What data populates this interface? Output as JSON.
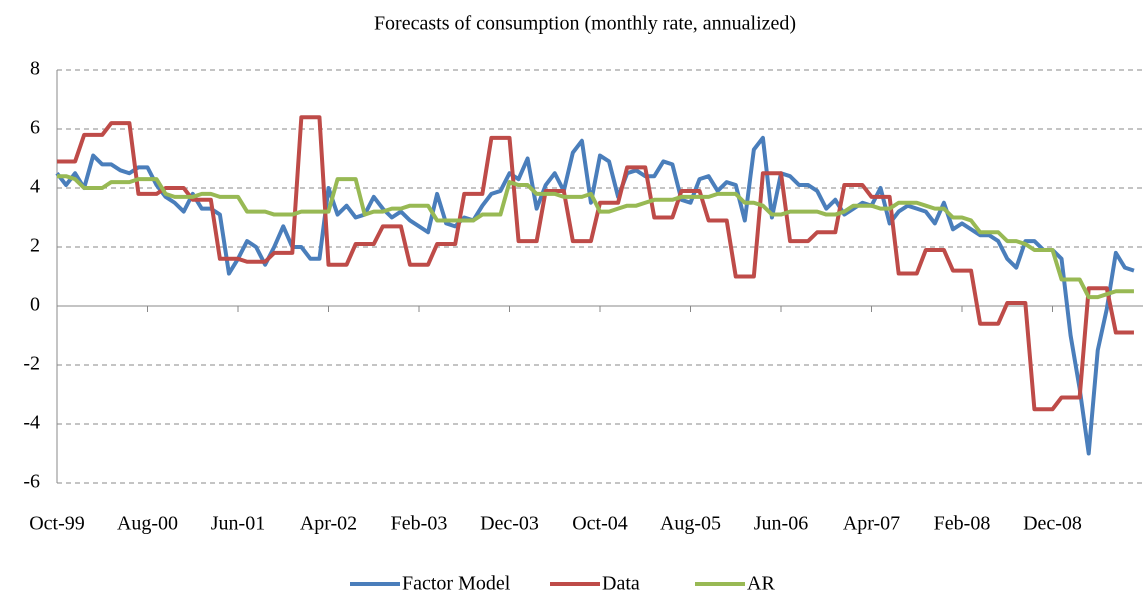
{
  "chart_data": {
    "type": "line",
    "title": "Forecasts of consumption (monthly rate, annualized)",
    "categories": [
      "Oct-99",
      null,
      null,
      null,
      null,
      null,
      null,
      null,
      null,
      null,
      "Aug-00",
      null,
      null,
      null,
      null,
      null,
      null,
      null,
      null,
      null,
      "Jun-01",
      null,
      null,
      null,
      null,
      null,
      null,
      null,
      null,
      null,
      "Apr-02",
      null,
      null,
      null,
      null,
      null,
      null,
      null,
      null,
      null,
      "Feb-03",
      null,
      null,
      null,
      null,
      null,
      null,
      null,
      null,
      null,
      "Dec-03",
      null,
      null,
      null,
      null,
      null,
      null,
      null,
      null,
      null,
      "Oct-04",
      null,
      null,
      null,
      null,
      null,
      null,
      null,
      null,
      null,
      "Aug-05",
      null,
      null,
      null,
      null,
      null,
      null,
      null,
      null,
      null,
      "Jun-06",
      null,
      null,
      null,
      null,
      null,
      null,
      null,
      null,
      null,
      "Apr-07",
      null,
      null,
      null,
      null,
      null,
      null,
      null,
      null,
      null,
      "Feb-08",
      null,
      null,
      null,
      null,
      null,
      null,
      null,
      null,
      null,
      "Dec-08",
      null,
      null,
      null,
      null,
      null,
      null,
      null,
      null,
      null
    ],
    "series": [
      {
        "name": "Factor Model",
        "color": "#4a7ebb",
        "values": [
          4.5,
          4.1,
          4.5,
          4.0,
          5.1,
          4.8,
          4.8,
          4.6,
          4.5,
          4.7,
          4.7,
          4.1,
          3.7,
          3.5,
          3.2,
          3.8,
          3.3,
          3.3,
          3.1,
          1.1,
          1.6,
          2.2,
          2.0,
          1.4,
          2.0,
          2.7,
          2.0,
          2.0,
          1.6,
          1.6,
          4.0,
          3.1,
          3.4,
          3.0,
          3.1,
          3.7,
          3.3,
          3.0,
          3.2,
          2.9,
          2.7,
          2.5,
          3.8,
          2.8,
          2.7,
          3.0,
          2.9,
          3.4,
          3.8,
          3.9,
          4.5,
          4.3,
          5.0,
          3.3,
          4.1,
          4.5,
          3.9,
          5.2,
          5.6,
          3.5,
          5.1,
          4.9,
          3.7,
          4.5,
          4.6,
          4.4,
          4.4,
          4.9,
          4.8,
          3.6,
          3.5,
          4.3,
          4.4,
          3.9,
          4.2,
          4.1,
          2.9,
          5.3,
          5.7,
          3.0,
          4.5,
          4.4,
          4.1,
          4.1,
          3.9,
          3.3,
          3.6,
          3.1,
          3.3,
          3.5,
          3.4,
          4.0,
          2.8,
          3.2,
          3.4,
          3.3,
          3.2,
          2.8,
          3.5,
          2.6,
          2.8,
          2.6,
          2.4,
          2.4,
          2.2,
          1.6,
          1.3,
          2.2,
          2.2,
          1.9,
          1.9,
          1.6,
          -1.0,
          -2.8,
          -5.0,
          -1.5,
          -0.1,
          1.8,
          1.3,
          1.2
        ]
      },
      {
        "name": "Data",
        "color": "#be4b48",
        "values": [
          4.9,
          4.9,
          4.9,
          5.8,
          5.8,
          5.8,
          6.2,
          6.2,
          6.2,
          3.8,
          3.8,
          3.8,
          4.0,
          4.0,
          4.0,
          3.6,
          3.6,
          3.6,
          1.6,
          1.6,
          1.6,
          1.5,
          1.5,
          1.5,
          1.8,
          1.8,
          1.8,
          6.4,
          6.4,
          6.4,
          1.4,
          1.4,
          1.4,
          2.1,
          2.1,
          2.1,
          2.7,
          2.7,
          2.7,
          1.4,
          1.4,
          1.4,
          2.1,
          2.1,
          2.1,
          3.8,
          3.8,
          3.8,
          5.7,
          5.7,
          5.7,
          2.2,
          2.2,
          2.2,
          3.9,
          3.9,
          3.9,
          2.2,
          2.2,
          2.2,
          3.5,
          3.5,
          3.5,
          4.7,
          4.7,
          4.7,
          3.0,
          3.0,
          3.0,
          3.9,
          3.9,
          3.9,
          2.9,
          2.9,
          2.9,
          1.0,
          1.0,
          1.0,
          4.5,
          4.5,
          4.5,
          2.2,
          2.2,
          2.2,
          2.5,
          2.5,
          2.5,
          4.1,
          4.1,
          4.1,
          3.7,
          3.7,
          3.7,
          1.1,
          1.1,
          1.1,
          1.9,
          1.9,
          1.9,
          1.2,
          1.2,
          1.2,
          -0.6,
          -0.6,
          -0.6,
          0.1,
          0.1,
          0.1,
          -3.5,
          -3.5,
          -3.5,
          -3.1,
          -3.1,
          -3.1,
          0.6,
          0.6,
          0.6,
          -0.9,
          -0.9,
          -0.9
        ]
      },
      {
        "name": "AR",
        "color": "#98b954",
        "values": [
          4.4,
          4.4,
          4.3,
          4.0,
          4.0,
          4.0,
          4.2,
          4.2,
          4.2,
          4.3,
          4.3,
          4.3,
          3.8,
          3.7,
          3.7,
          3.7,
          3.8,
          3.8,
          3.7,
          3.7,
          3.7,
          3.2,
          3.2,
          3.2,
          3.1,
          3.1,
          3.1,
          3.2,
          3.2,
          3.2,
          3.2,
          4.3,
          4.3,
          4.3,
          3.1,
          3.2,
          3.2,
          3.3,
          3.3,
          3.4,
          3.4,
          3.4,
          2.9,
          2.9,
          2.9,
          2.9,
          2.9,
          3.1,
          3.1,
          3.1,
          4.2,
          4.1,
          4.1,
          3.8,
          3.8,
          3.8,
          3.7,
          3.7,
          3.7,
          3.8,
          3.2,
          3.2,
          3.3,
          3.4,
          3.4,
          3.5,
          3.6,
          3.6,
          3.6,
          3.7,
          3.7,
          3.7,
          3.7,
          3.8,
          3.8,
          3.8,
          3.5,
          3.5,
          3.4,
          3.1,
          3.1,
          3.2,
          3.2,
          3.2,
          3.2,
          3.1,
          3.1,
          3.2,
          3.4,
          3.4,
          3.4,
          3.3,
          3.3,
          3.5,
          3.5,
          3.5,
          3.4,
          3.3,
          3.3,
          3.0,
          3.0,
          2.9,
          2.5,
          2.5,
          2.5,
          2.2,
          2.2,
          2.1,
          1.9,
          1.9,
          1.9,
          0.9,
          0.9,
          0.9,
          0.3,
          0.3,
          0.4,
          0.5,
          0.5,
          0.5
        ]
      }
    ],
    "ylim": [
      -6,
      8
    ],
    "yticks": [
      -6,
      -4,
      -2,
      0,
      2,
      4,
      6,
      8
    ],
    "grid": true
  }
}
